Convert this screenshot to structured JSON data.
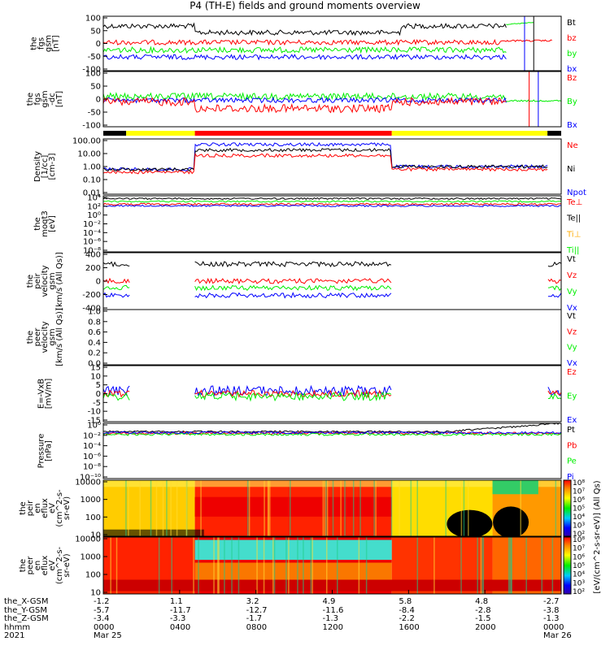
{
  "page": {
    "title": "P4 (TH-E) fields and ground moments overview"
  },
  "colors": {
    "black": "#000000",
    "red": "#ff0000",
    "green": "#00ee00",
    "blue": "#0000ff",
    "yellow": "#ffff00"
  },
  "chart_data": [
    {
      "type": "line",
      "panel": "fgs_gsm",
      "ylabel": [
        "the",
        "fgs",
        "gsm",
        "[nT]"
      ],
      "ylim": [
        -100,
        100
      ],
      "ticks": [
        "100",
        "50",
        "0",
        "-50",
        "-100"
      ],
      "series": [
        {
          "name": "Bt",
          "color": "#000000"
        },
        {
          "name": "bz",
          "color": "#ff0000"
        },
        {
          "name": "by",
          "color": "#00ee00"
        },
        {
          "name": "bx",
          "color": "#0000ff"
        }
      ]
    },
    {
      "type": "line",
      "panel": "fgs_gsm_dc",
      "ylabel": [
        "the",
        "fgs",
        "gsm",
        "-dc",
        "[nT]"
      ],
      "ylim": [
        -125,
        100
      ],
      "ticks": [
        "100",
        "50",
        "0",
        "-50",
        "-100"
      ],
      "series": [
        {
          "name": "Bz",
          "color": "#ff0000"
        },
        {
          "name": "By",
          "color": "#00ee00"
        },
        {
          "name": "Bx",
          "color": "#0000ff"
        }
      ]
    },
    {
      "type": "line",
      "panel": "density",
      "ylabel": [
        "Density",
        "[1/cc]",
        "[cm-3]"
      ],
      "yscale": "log",
      "ylim": [
        0.005,
        200
      ],
      "ticks": [
        "100.00",
        "10.00",
        "1.00",
        "0.10",
        "0.01"
      ],
      "series": [
        {
          "name": "Ne",
          "color": "#ff0000"
        },
        {
          "name": "Ni",
          "color": "#000000"
        },
        {
          "name": "Npot",
          "color": "#0000ff"
        }
      ]
    },
    {
      "type": "line",
      "panel": "temperature",
      "ylabel": [
        "the",
        "moqt3",
        "[eV]"
      ],
      "yscale": "log",
      "ticks": [
        "10⁴",
        "10²",
        "10⁰",
        "10⁻²",
        "10⁻⁴",
        "10⁻⁶",
        "10⁻⁸"
      ],
      "series": [
        {
          "name": "Te⊥",
          "color": "#ff0000"
        },
        {
          "name": "Te||",
          "color": "#000000"
        },
        {
          "name": "Ti⊥",
          "color": "#ffaa00"
        },
        {
          "name": "Ti||",
          "color": "#00ee00"
        }
      ]
    },
    {
      "type": "line",
      "panel": "peir_velocity",
      "ylabel": [
        "the",
        "peir",
        "velocity",
        "gsm",
        "[km/s (All Qs)]"
      ],
      "ylim": [
        -400,
        400
      ],
      "ticks": [
        "400",
        "200",
        "0",
        "-200",
        "-400"
      ],
      "series": [
        {
          "name": "Vt",
          "color": "#000000"
        },
        {
          "name": "Vz",
          "color": "#ff0000"
        },
        {
          "name": "Vy",
          "color": "#00ee00"
        },
        {
          "name": "Vx",
          "color": "#0000ff"
        }
      ]
    },
    {
      "type": "line",
      "panel": "peer_velocity",
      "ylabel": [
        "the",
        "peer",
        "velocity",
        "gsm",
        "[km/s (All Qs)]"
      ],
      "ylim": [
        0,
        1
      ],
      "ticks": [
        "1.0",
        "0.8",
        "0.6",
        "0.4",
        "0.2",
        "0.0"
      ],
      "series": [
        {
          "name": "Vt",
          "color": "#000000"
        },
        {
          "name": "Vz",
          "color": "#ff0000"
        },
        {
          "name": "Vy",
          "color": "#00ee00"
        },
        {
          "name": "Vx",
          "color": "#0000ff"
        }
      ]
    },
    {
      "type": "line",
      "panel": "efield",
      "ylabel": [
        "E=-VxB",
        "[mV/m]"
      ],
      "ylim": [
        -17,
        17
      ],
      "ticks": [
        "15",
        "10",
        "5",
        "0",
        "-5",
        "-10",
        "-15"
      ],
      "series": [
        {
          "name": "Ez",
          "color": "#ff0000"
        },
        {
          "name": "Ey",
          "color": "#00ee00"
        },
        {
          "name": "Ex",
          "color": "#0000ff"
        }
      ]
    },
    {
      "type": "line",
      "panel": "pressure",
      "ylabel": [
        "Pressure",
        "[nPa]"
      ],
      "yscale": "log",
      "ticks": [
        "10⁰",
        "10⁻²",
        "10⁻⁴",
        "10⁻⁶",
        "10⁻⁸",
        "10⁻¹⁰"
      ],
      "series": [
        {
          "name": "Pt",
          "color": "#000000"
        },
        {
          "name": "Pb",
          "color": "#ff0000"
        },
        {
          "name": "Pe",
          "color": "#00ee00"
        },
        {
          "name": "Pi",
          "color": "#0000ff"
        }
      ]
    },
    {
      "type": "heatmap",
      "panel": "peir_en_eflux",
      "ylabel": [
        "the",
        "peir",
        "en",
        "eflux",
        "eV",
        "(cm^2-s-",
        "sr-eV)"
      ],
      "yscale": "log",
      "ticks": [
        "10000",
        "1000",
        "100",
        "10"
      ]
    },
    {
      "type": "heatmap",
      "panel": "peer_en_eflux",
      "ylabel": [
        "the",
        "peer",
        "en",
        "eflux",
        "eV",
        "(cm^2-s-",
        "sr-eV)"
      ],
      "yscale": "log",
      "ticks": [
        "10000",
        "1000",
        "100",
        "10"
      ]
    }
  ],
  "colorbar": {
    "label": "[eV/(cm^2-s-sr-eV)] (All Qs)",
    "upper_ticks": [
      "10⁸",
      "10⁷",
      "10⁶",
      "10⁵",
      "10⁴",
      "10³",
      "10²"
    ],
    "lower_ticks": [
      "10⁸",
      "10⁷",
      "10⁶",
      "10⁵",
      "10⁴",
      "10³",
      "10²"
    ]
  },
  "footer": {
    "rows": [
      {
        "label": "the_X-GSM",
        "values": [
          "-1.2",
          "1.1",
          "3.2",
          "4.9",
          "5.8",
          "4.8",
          "-2.7"
        ]
      },
      {
        "label": "the_Y-GSM",
        "values": [
          "-5.7",
          "-11.7",
          "-12.7",
          "-11.6",
          "-8.4",
          "-2.8",
          "-3.8"
        ]
      },
      {
        "label": "the_Z-GSM",
        "values": [
          "-3.4",
          "-3.3",
          "-1.7",
          "-1.3",
          "-2.2",
          "-1.5",
          "-1.3"
        ]
      },
      {
        "label": "hhmm",
        "values": [
          "0000",
          "0400",
          "0800",
          "1200",
          "1600",
          "2000",
          "0000"
        ]
      },
      {
        "label": "2021",
        "values": [
          "Mar 25",
          "",
          "",
          "",
          "",
          "",
          "Mar 26"
        ]
      }
    ]
  }
}
